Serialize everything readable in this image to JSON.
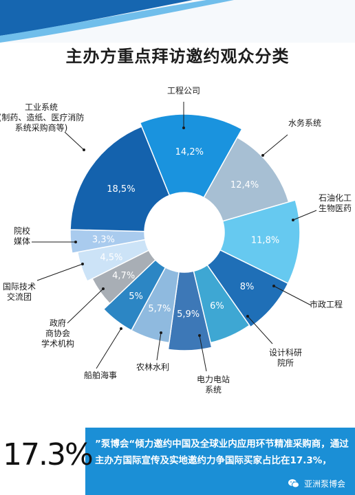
{
  "title": "主办方重点拜访邀约观众分类",
  "chart_data": {
    "type": "pie",
    "donut": true,
    "title": "主办方重点拜访邀约观众分类",
    "slices": [
      {
        "label_lines": [
          "工程公司"
        ],
        "value": 14.2,
        "value_label": "14,2%",
        "color": "#1a93de"
      },
      {
        "label_lines": [
          "水务系统"
        ],
        "value": 12.4,
        "value_label": "12,4%",
        "color": "#a7bfd3"
      },
      {
        "label_lines": [
          "石油化工",
          "生物医药"
        ],
        "value": 11.8,
        "value_label": "11,8%",
        "color": "#66c9f0"
      },
      {
        "label_lines": [
          "市政工程"
        ],
        "value": 8,
        "value_label": "8%",
        "color": "#1f6fb7"
      },
      {
        "label_lines": [
          "设计科研",
          "院所"
        ],
        "value": 6,
        "value_label": "6%",
        "color": "#3ea7d3"
      },
      {
        "label_lines": [
          "电力电站",
          "系统"
        ],
        "value": 5.9,
        "value_label": "5,9%",
        "color": "#3d78b7"
      },
      {
        "label_lines": [
          "农林水利"
        ],
        "value": 5.7,
        "value_label": "5,7%",
        "color": "#8fbadf"
      },
      {
        "label_lines": [
          "船舶海事"
        ],
        "value": 5,
        "value_label": "5%",
        "color": "#2c86c4"
      },
      {
        "label_lines": [
          "政府",
          "商协会",
          "学术机构"
        ],
        "value": 4.7,
        "value_label": "4,7%",
        "color": "#a8aeb5"
      },
      {
        "label_lines": [
          "国际技术",
          "交流团"
        ],
        "value": 4.5,
        "value_label": "4,5%",
        "color": "#cce3f7"
      },
      {
        "label_lines": [
          "院校",
          "媒体"
        ],
        "value": 3.3,
        "value_label": "3,3%",
        "color": "#a9cbee"
      },
      {
        "label_lines": [
          "工业系统",
          "(制药、造纸、医疗消防",
          "系统采购商等)"
        ],
        "value": 18.5,
        "value_label": "18,5%",
        "color": "#1462ad"
      }
    ]
  },
  "footer": {
    "big_stat": "17.3%",
    "text": "”泵博会“倾力邀约中国及全球业内应用环节精准采购商，通过主办方国际宣传及实地邀约力争国际买家占比在17.3%，",
    "brand": "亚洲泵博会"
  },
  "colors": {
    "accent": "#1b8fd6",
    "stripe": "#1666b0"
  }
}
